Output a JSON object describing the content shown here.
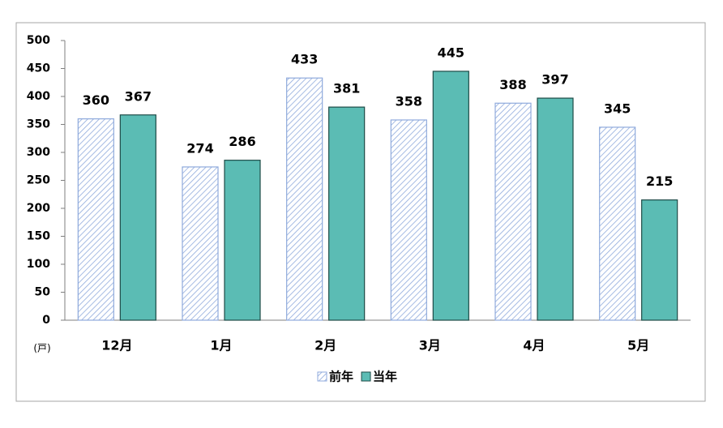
{
  "chart_data": {
    "type": "bar",
    "y_unit": "(戸)",
    "categories": [
      "12月",
      "1月",
      "2月",
      "3月",
      "4月",
      "5月"
    ],
    "series": [
      {
        "name": "前年",
        "color": "#8faadc",
        "pattern": "hatch",
        "values": [
          360,
          274,
          433,
          358,
          388,
          345
        ]
      },
      {
        "name": "当年",
        "color": "#5bbcb4",
        "values": [
          367,
          286,
          381,
          445,
          397,
          215
        ]
      }
    ],
    "ylim": [
      0,
      500
    ],
    "yticks": [
      0,
      50,
      100,
      150,
      200,
      250,
      300,
      350,
      400,
      450,
      500
    ],
    "legend": "bottom"
  }
}
